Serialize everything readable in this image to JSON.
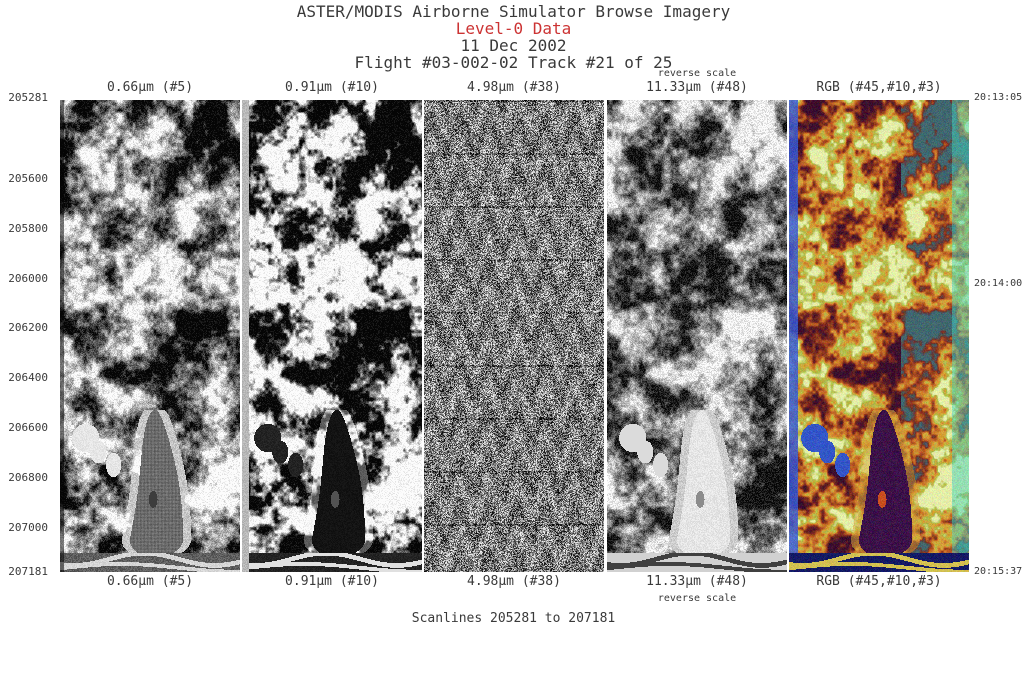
{
  "header": {
    "title": "ASTER/MODIS Airborne Simulator Browse Imagery",
    "subtitle": "Level-0 Data",
    "date": "11 Dec 2002",
    "flight": "Flight #03-002-02 Track #21 of 25"
  },
  "panels": [
    {
      "band": "5",
      "label": "0.66µm (#5)"
    },
    {
      "band": "10",
      "label": "0.91µm (#10)"
    },
    {
      "band": "38",
      "label": "4.98µm (#38)"
    },
    {
      "band": "48",
      "label": "11.33µm (#48)",
      "note": "reverse scale"
    },
    {
      "band": "rgb",
      "label": "RGB (#45,#10,#3)"
    }
  ],
  "scanline_axis": {
    "labels": [
      "205281",
      "205600",
      "205800",
      "206000",
      "206200",
      "206400",
      "206600",
      "206800",
      "207000",
      "207181"
    ]
  },
  "time_axis": {
    "labels": [
      "20:13:05",
      "20:14:00",
      "20:15:37"
    ]
  },
  "footer": {
    "scanlines": "Scanlines 205281 to 207181"
  },
  "colors": {
    "text": "#3a3a3a",
    "subtitle_red": "#cc3333",
    "rgb_palette": [
      "#3c0f2d",
      "#78281e",
      "#be5f23",
      "#d7a037",
      "#afb946",
      "#e4eda8"
    ],
    "lake_purple": "#331040",
    "pond_blue": "#3455c8",
    "edge_blue": "#3a5ad2",
    "edge_teal": "#46d2be",
    "bottom_navy": "#141a64",
    "road_gold": "#d2c050",
    "ring_gold": "#d2a83c",
    "island_orange": "#c85020"
  }
}
